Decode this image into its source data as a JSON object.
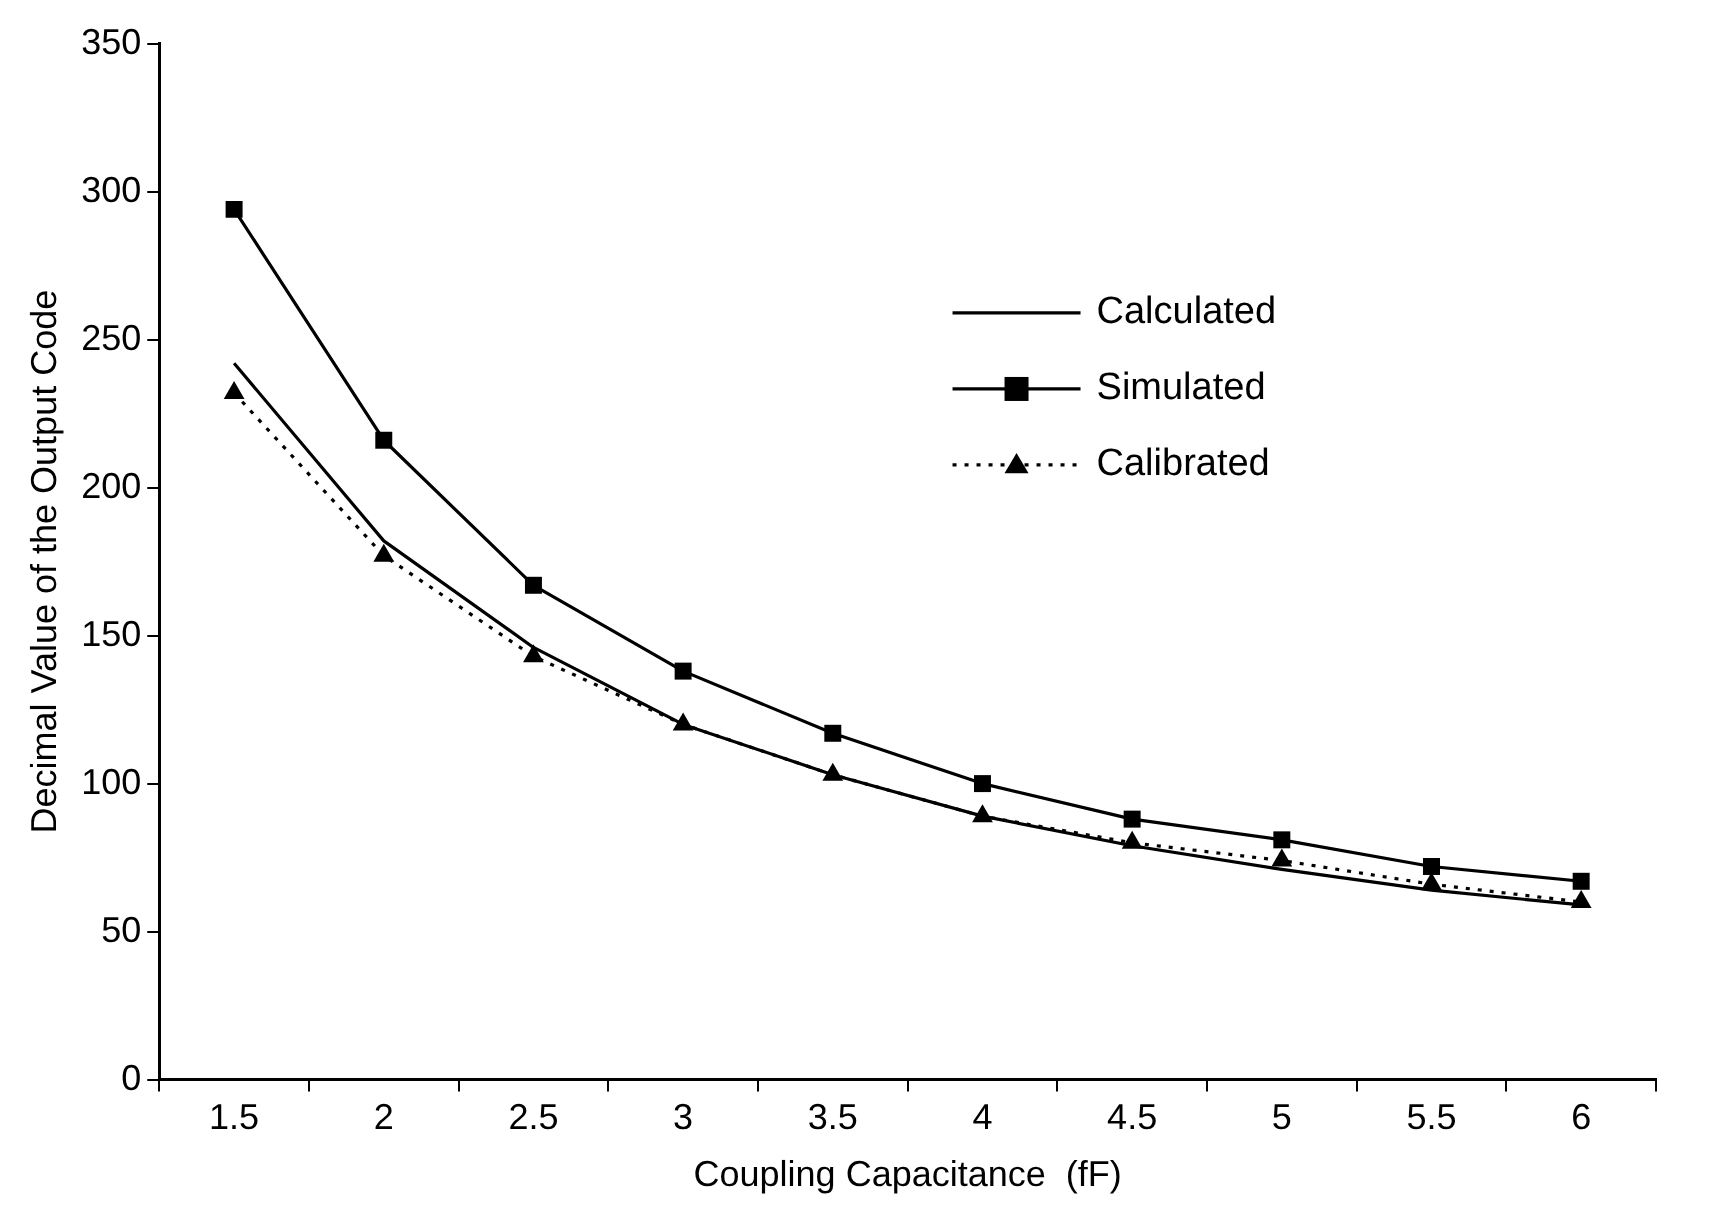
{
  "chart_data": {
    "type": "line",
    "xlabel": "Coupling Capacitance  (fF)",
    "ylabel": "Decimal Value of the Output Code",
    "categories": [
      "1.5",
      "2",
      "2.5",
      "3",
      "3.5",
      "4",
      "4.5",
      "5",
      "5.5",
      "6"
    ],
    "series": [
      {
        "name": "Calculated",
        "color": "#000000",
        "marker": "none",
        "line_style": "solid",
        "values": [
          242,
          182,
          146,
          120,
          103,
          89,
          79,
          71,
          64,
          59
        ]
      },
      {
        "name": "Simulated",
        "color": "#000000",
        "marker": "square",
        "line_style": "solid",
        "values": [
          294,
          216,
          167,
          138,
          117,
          100,
          88,
          81,
          72,
          67
        ]
      },
      {
        "name": "Calibrated",
        "color": "#000000",
        "marker": "triangle",
        "line_style": "dotted",
        "values": [
          232,
          177,
          143,
          120,
          103,
          89,
          80,
          74,
          66,
          60
        ]
      }
    ],
    "ylim": [
      0,
      350
    ],
    "yticks": [
      0,
      50,
      100,
      150,
      200,
      250,
      300,
      350
    ],
    "grid": false,
    "legend": "right"
  }
}
